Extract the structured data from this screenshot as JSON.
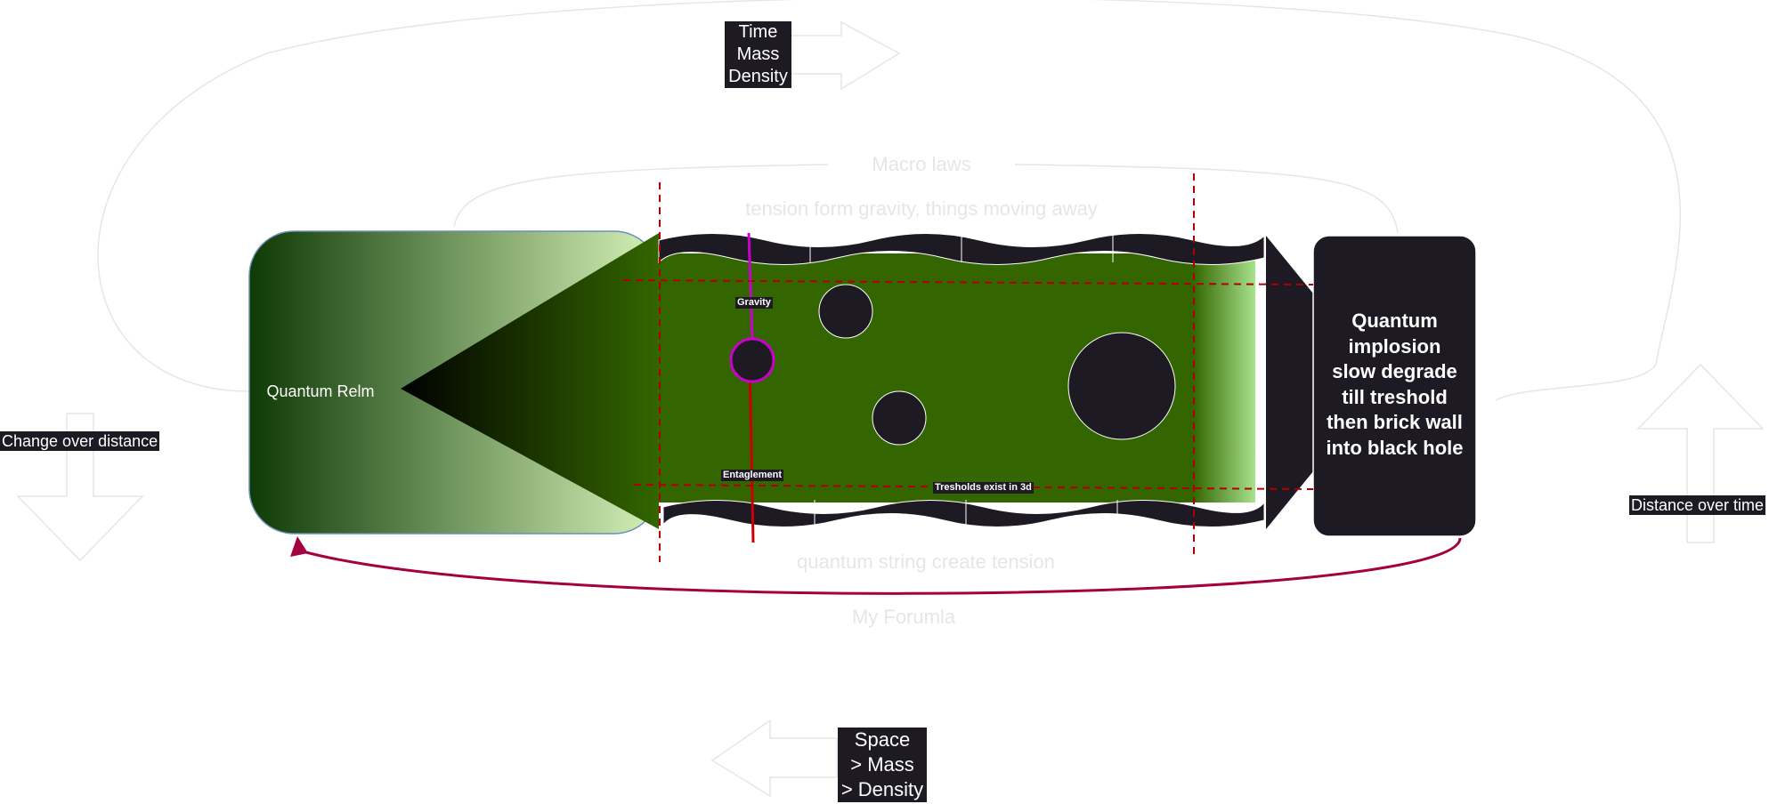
{
  "labels": {
    "time_mass_density": [
      "Time",
      "Mass",
      "Density"
    ],
    "macro_laws": "Macro laws",
    "tension_gravity": "tension form gravity, things moving away",
    "quantum_relm": "Quantum Relm",
    "change_over_distance": "Change over distance",
    "gravity": "Gravity",
    "entaglement": "Entaglement",
    "tresholds": "Tresholds exist in 3d",
    "quantum_implosion": [
      "Quantum",
      "implosion",
      "slow degrade",
      "till treshold",
      "then brick wall",
      "into black hole"
    ],
    "distance_over_time": "Distance over time",
    "quantum_string": "quantum string create tension",
    "my_formula": "My Forumla",
    "space_mass_density": [
      "Space",
      "> Mass",
      "> Density"
    ]
  },
  "colors": {
    "band_green": "#336600",
    "dark_fill": "#1d1a23",
    "dashed_red": "#b20000",
    "loop_arrow": "#a50040",
    "gravity_magenta": "#cc00cc",
    "faint_outline": "#e6e6e6",
    "relm_border": "#6c8ebf"
  }
}
